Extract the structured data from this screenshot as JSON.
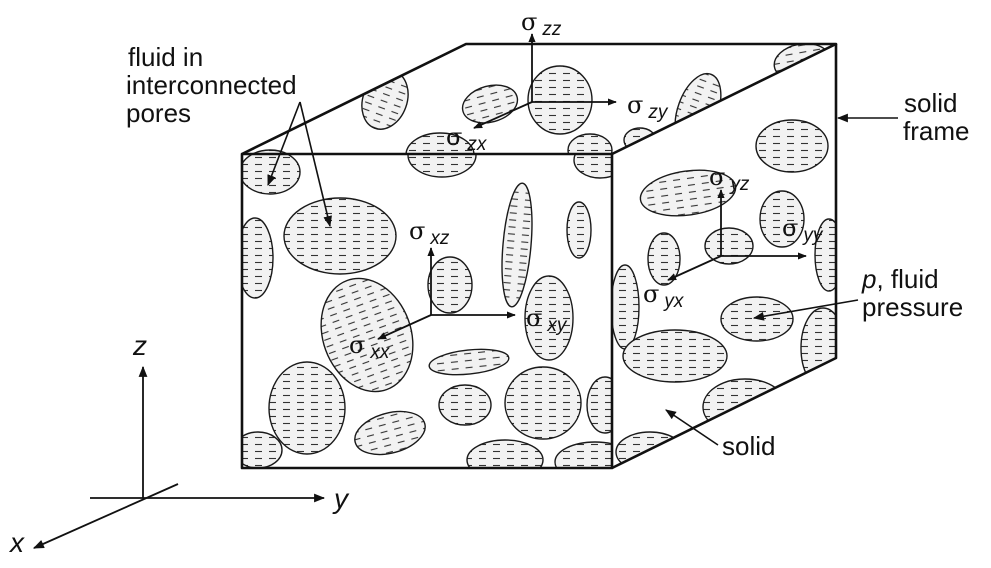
{
  "labels": {
    "fluid_in": "fluid in",
    "interconnected": "interconnected",
    "pores": "pores",
    "solid_frame_line1": "solid",
    "solid_frame_line2": "frame",
    "p": "p",
    "fluid_pressure_line1": ", fluid",
    "fluid_pressure_line2": "pressure",
    "solid": "solid"
  },
  "stresses": {
    "sigma": "σ",
    "zz": "zz",
    "zy": "zy",
    "zx": "zx",
    "yz": "yz",
    "yy": "yy",
    "yx": "yx",
    "xz": "xz",
    "xy": "xy",
    "xx": "xx"
  },
  "axes": {
    "x": "x",
    "y": "y",
    "z": "z"
  }
}
